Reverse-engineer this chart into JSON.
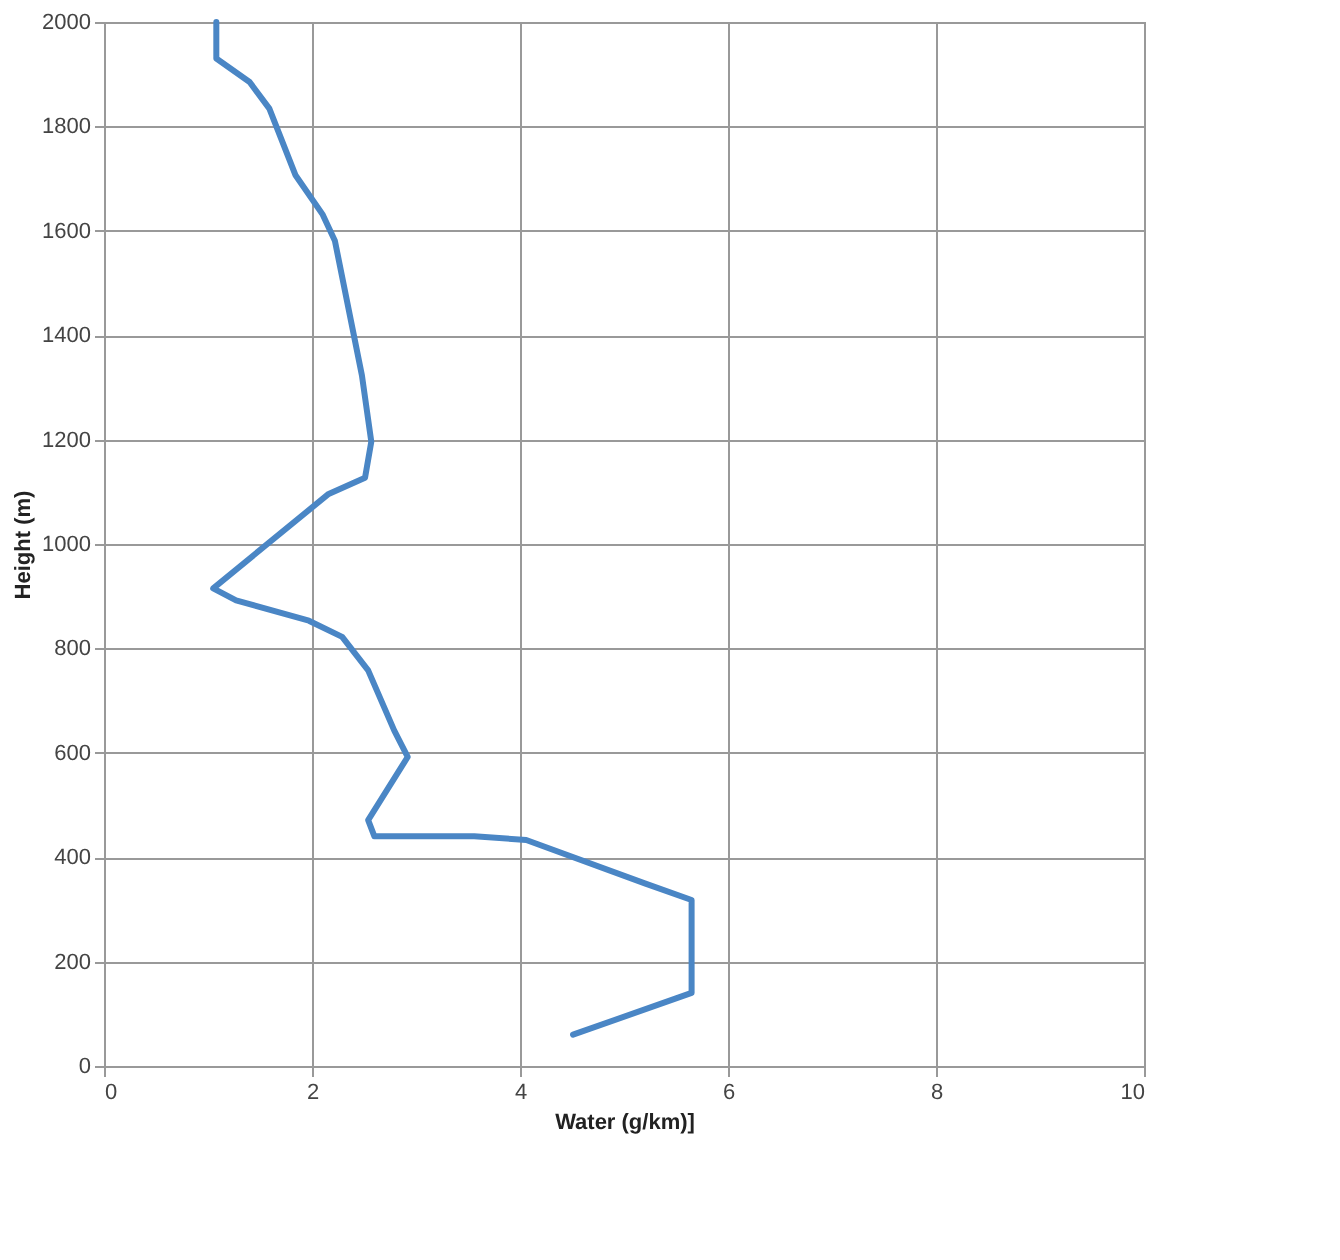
{
  "chart_data": {
    "type": "line",
    "xlabel": "Water (g/km)]",
    "ylabel": "Height (m)",
    "xlim": [
      0,
      10
    ],
    "xticks": [
      0,
      2,
      4,
      6,
      8,
      10
    ],
    "ylim": [
      0,
      2000
    ],
    "yticks": [
      0,
      200,
      400,
      600,
      800,
      1000,
      1200,
      1400,
      1600,
      1800,
      2000
    ],
    "grid": true,
    "marker": "none",
    "line_style": "solid",
    "series": [
      {
        "color": "#4a86c5",
        "x": [
          4.51,
          5.65,
          5.65,
          5.2,
          4.06,
          3.56,
          2.6,
          2.54,
          2.92,
          2.79,
          2.54,
          2.29,
          1.97,
          1.27,
          1.05,
          2.16,
          2.51,
          2.57,
          2.48,
          2.22,
          2.1,
          1.84,
          1.59,
          1.4,
          1.08,
          1.08
        ],
        "values": [
          60,
          140,
          318,
          350,
          433,
          440,
          440,
          471,
          592,
          643,
          758,
          822,
          853,
          892,
          915,
          1096,
          1127,
          1196,
          1323,
          1581,
          1632,
          1707,
          1834,
          1885,
          1930,
          2000
        ]
      }
    ]
  }
}
